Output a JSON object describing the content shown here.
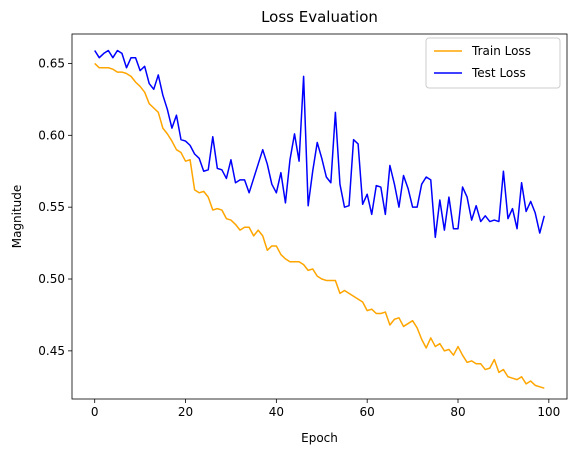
{
  "chart_data": {
    "type": "line",
    "title": "Loss Evaluation",
    "xlabel": "Epoch",
    "ylabel": "Magnitude",
    "xlim": [
      -5,
      104
    ],
    "ylim": [
      0.4165,
      0.6705
    ],
    "xticks": [
      0,
      20,
      40,
      60,
      80,
      100
    ],
    "yticks": [
      0.45,
      0.5,
      0.55,
      0.6,
      0.65
    ],
    "grid": false,
    "legend_position": "top-right",
    "series": [
      {
        "name": "Train Loss",
        "color": "#ffa500",
        "x": [
          0,
          1,
          2,
          3,
          4,
          5,
          6,
          7,
          8,
          9,
          10,
          11,
          12,
          13,
          14,
          15,
          16,
          17,
          18,
          19,
          20,
          21,
          22,
          23,
          24,
          25,
          26,
          27,
          28,
          29,
          30,
          31,
          32,
          33,
          34,
          35,
          36,
          37,
          38,
          39,
          40,
          41,
          42,
          43,
          44,
          45,
          46,
          47,
          48,
          49,
          50,
          51,
          52,
          53,
          54,
          55,
          56,
          57,
          58,
          59,
          60,
          61,
          62,
          63,
          64,
          65,
          66,
          67,
          68,
          69,
          70,
          71,
          72,
          73,
          74,
          75,
          76,
          77,
          78,
          79,
          80,
          81,
          82,
          83,
          84,
          85,
          86,
          87,
          88,
          89,
          90,
          91,
          92,
          93,
          94,
          95,
          96,
          97,
          98,
          99
        ],
        "values": [
          0.65,
          0.647,
          0.647,
          0.647,
          0.646,
          0.644,
          0.644,
          0.643,
          0.641,
          0.637,
          0.634,
          0.63,
          0.622,
          0.619,
          0.616,
          0.605,
          0.601,
          0.596,
          0.59,
          0.588,
          0.582,
          0.583,
          0.562,
          0.56,
          0.561,
          0.557,
          0.548,
          0.549,
          0.548,
          0.542,
          0.541,
          0.538,
          0.534,
          0.536,
          0.536,
          0.53,
          0.534,
          0.53,
          0.52,
          0.523,
          0.523,
          0.517,
          0.514,
          0.512,
          0.512,
          0.512,
          0.51,
          0.506,
          0.507,
          0.502,
          0.5,
          0.499,
          0.499,
          0.499,
          0.49,
          0.492,
          0.49,
          0.488,
          0.486,
          0.484,
          0.478,
          0.479,
          0.476,
          0.476,
          0.477,
          0.468,
          0.472,
          0.473,
          0.467,
          0.469,
          0.471,
          0.466,
          0.458,
          0.452,
          0.459,
          0.453,
          0.455,
          0.45,
          0.451,
          0.447,
          0.453,
          0.447,
          0.442,
          0.443,
          0.441,
          0.441,
          0.437,
          0.438,
          0.444,
          0.435,
          0.437,
          0.432,
          0.431,
          0.43,
          0.432,
          0.427,
          0.429,
          0.426,
          0.425,
          0.424
        ]
      },
      {
        "name": "Test Loss",
        "color": "#0000ff",
        "x": [
          0,
          1,
          2,
          3,
          4,
          5,
          6,
          7,
          8,
          9,
          10,
          11,
          12,
          13,
          14,
          15,
          16,
          17,
          18,
          19,
          20,
          21,
          22,
          23,
          24,
          25,
          26,
          27,
          28,
          29,
          30,
          31,
          32,
          33,
          34,
          35,
          36,
          37,
          38,
          39,
          40,
          41,
          42,
          43,
          44,
          45,
          46,
          47,
          48,
          49,
          50,
          51,
          52,
          53,
          54,
          55,
          56,
          57,
          58,
          59,
          60,
          61,
          62,
          63,
          64,
          65,
          66,
          67,
          68,
          69,
          70,
          71,
          72,
          73,
          74,
          75,
          76,
          77,
          78,
          79,
          80,
          81,
          82,
          83,
          84,
          85,
          86,
          87,
          88,
          89,
          90,
          91,
          92,
          93,
          94,
          95,
          96,
          97,
          98,
          99
        ],
        "values": [
          0.659,
          0.654,
          0.657,
          0.659,
          0.654,
          0.659,
          0.657,
          0.647,
          0.654,
          0.654,
          0.645,
          0.648,
          0.636,
          0.632,
          0.642,
          0.628,
          0.618,
          0.605,
          0.614,
          0.597,
          0.596,
          0.593,
          0.587,
          0.584,
          0.575,
          0.576,
          0.599,
          0.577,
          0.576,
          0.57,
          0.583,
          0.567,
          0.569,
          0.569,
          0.56,
          0.57,
          0.58,
          0.59,
          0.58,
          0.566,
          0.56,
          0.574,
          0.553,
          0.583,
          0.601,
          0.582,
          0.641,
          0.551,
          0.575,
          0.595,
          0.584,
          0.571,
          0.567,
          0.616,
          0.566,
          0.55,
          0.551,
          0.597,
          0.594,
          0.552,
          0.559,
          0.545,
          0.565,
          0.564,
          0.545,
          0.579,
          0.566,
          0.55,
          0.572,
          0.563,
          0.55,
          0.55,
          0.566,
          0.571,
          0.569,
          0.529,
          0.555,
          0.534,
          0.557,
          0.535,
          0.535,
          0.564,
          0.557,
          0.541,
          0.551,
          0.54,
          0.544,
          0.54,
          0.541,
          0.54,
          0.575,
          0.542,
          0.549,
          0.535,
          0.567,
          0.547,
          0.554,
          0.546,
          0.532,
          0.544
        ]
      }
    ]
  }
}
